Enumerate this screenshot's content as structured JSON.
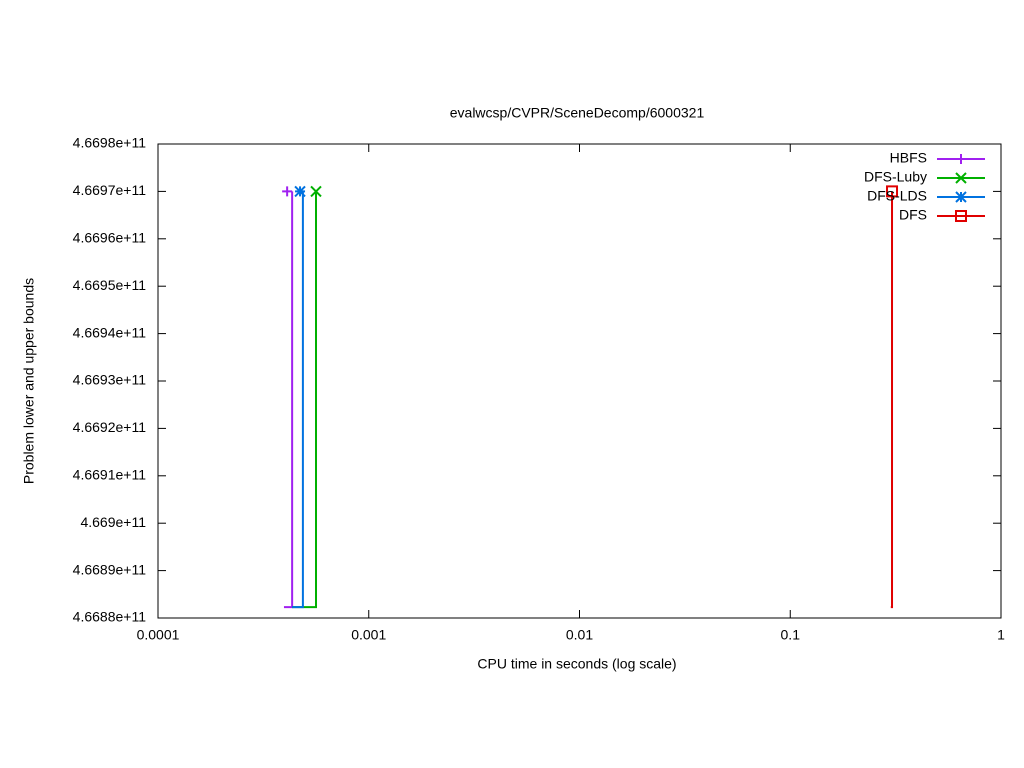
{
  "chart_data": {
    "type": "step-line",
    "title": "evalwcsp/CVPR/SceneDecomp/6000321",
    "x_label": "CPU time in seconds (log scale)",
    "y_label": "Problem lower and upper bounds",
    "xscale": "log",
    "xlim": [
      0.0001,
      1
    ],
    "xticks": [
      0.0001,
      0.001,
      0.01,
      0.1,
      1
    ],
    "ylim": [
      466880000000,
      466980000000
    ],
    "yticks": [
      {
        "value": 466880000000,
        "label": "4.6688e+11"
      },
      {
        "value": 466890000000,
        "label": "4.6689e+11"
      },
      {
        "value": 466900000000,
        "label": "4.669e+11"
      },
      {
        "value": 466910000000,
        "label": "4.6691e+11"
      },
      {
        "value": 466920000000,
        "label": "4.6692e+11"
      },
      {
        "value": 466930000000,
        "label": "4.6693e+11"
      },
      {
        "value": 466940000000,
        "label": "4.6694e+11"
      },
      {
        "value": 466950000000,
        "label": "4.6695e+11"
      },
      {
        "value": 466960000000,
        "label": "4.6696e+11"
      },
      {
        "value": 466970000000,
        "label": "4.6697e+11"
      },
      {
        "value": 466980000000,
        "label": "4.6698e+11"
      }
    ],
    "legend": "top-right",
    "series": [
      {
        "name": "HBFS",
        "color": "#a020f0",
        "marker": "plus",
        "x": [
          0.000396,
          0.000433,
          0.000433
        ],
        "values": [
          466882300000,
          466882300000,
          466970000000
        ],
        "point_x": [
          0.00041
        ],
        "point_values": [
          466970000000
        ]
      },
      {
        "name": "DFS-Luby",
        "color": "#00b000",
        "marker": "cross",
        "x": [
          0.000433,
          0.000562,
          0.000562
        ],
        "values": [
          466882300000,
          466882300000,
          466970000000
        ],
        "point_x": [
          0.000562
        ],
        "point_values": [
          466970000000
        ]
      },
      {
        "name": "DFS-LDS",
        "color": "#0072e0",
        "marker": "star",
        "x": [
          0.000433,
          0.000487,
          0.000487
        ],
        "values": [
          466882300000,
          466882300000,
          466970000000
        ],
        "point_x": [
          0.000472
        ],
        "point_values": [
          466970000000
        ]
      },
      {
        "name": "DFS",
        "color": "#e00000",
        "marker": "square",
        "x": [
          0.3,
          0.304,
          0.304
        ],
        "values": [
          466882300000,
          466882300000,
          466970000000
        ],
        "point_x": [
          0.304
        ],
        "point_values": [
          466970000000
        ]
      }
    ]
  }
}
